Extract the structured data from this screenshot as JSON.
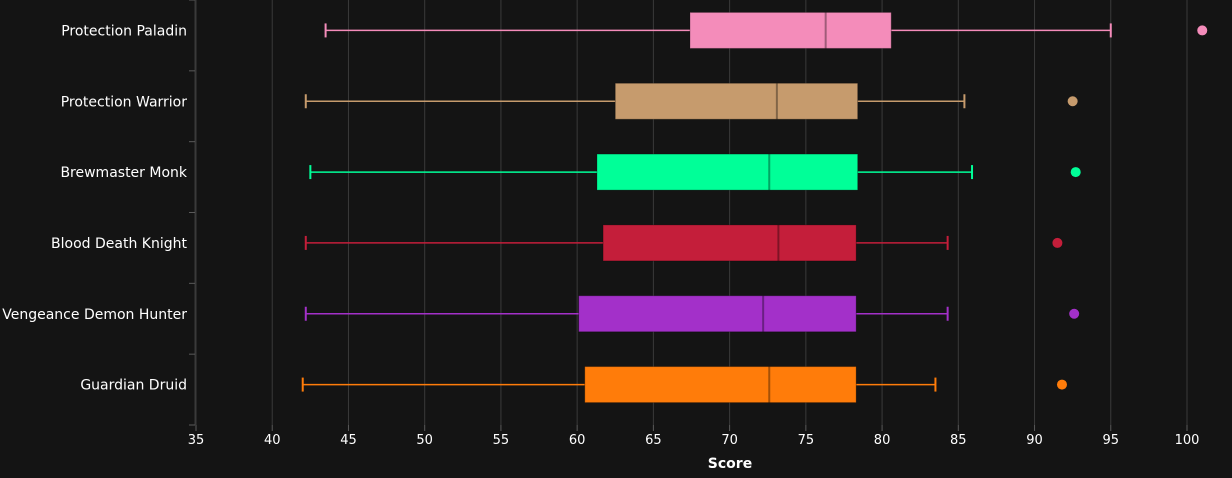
{
  "chart_data": {
    "type": "box",
    "xlabel": "Score",
    "xlim": [
      35,
      101
    ],
    "xticks": [
      35,
      40,
      45,
      50,
      55,
      60,
      65,
      70,
      75,
      80,
      85,
      90,
      95,
      100
    ],
    "grid": true,
    "orientation": "horizontal",
    "series": [
      {
        "name": "Protection Paladin",
        "color": "#F48CBA",
        "whisker_low": 43.5,
        "q1": 67.4,
        "median": 76.3,
        "q3": 80.6,
        "whisker_high": 95.0,
        "outlier": 101.0
      },
      {
        "name": "Protection Warrior",
        "color": "#C69B6D",
        "whisker_low": 42.2,
        "q1": 62.5,
        "median": 73.1,
        "q3": 78.4,
        "whisker_high": 85.4,
        "outlier": 92.5
      },
      {
        "name": "Brewmaster Monk",
        "color": "#00FF98",
        "whisker_low": 42.5,
        "q1": 61.3,
        "median": 72.6,
        "q3": 78.4,
        "whisker_high": 85.9,
        "outlier": 92.7
      },
      {
        "name": "Blood Death Knight",
        "color": "#C41E3A",
        "whisker_low": 42.2,
        "q1": 61.7,
        "median": 73.2,
        "q3": 78.3,
        "whisker_high": 84.3,
        "outlier": 91.5
      },
      {
        "name": "Vengeance Demon Hunter",
        "color": "#A330C9",
        "whisker_low": 42.2,
        "q1": 60.1,
        "median": 72.2,
        "q3": 78.3,
        "whisker_high": 84.3,
        "outlier": 92.6
      },
      {
        "name": "Guardian Druid",
        "color": "#FF7C0A",
        "whisker_low": 42.0,
        "q1": 60.5,
        "median": 72.6,
        "q3": 78.3,
        "whisker_high": 83.5,
        "outlier": 91.8
      }
    ]
  }
}
